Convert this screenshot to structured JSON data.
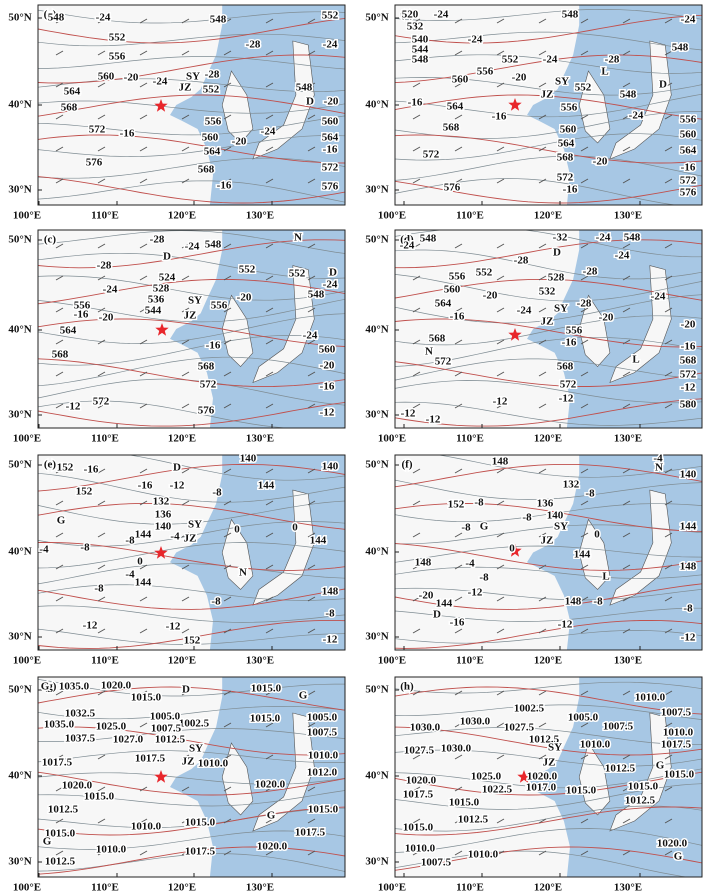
{
  "axes": {
    "lat": [
      "50°N",
      "40°N",
      "30°N"
    ],
    "lon": [
      "100°E",
      "110°E",
      "120°E",
      "130°E"
    ]
  },
  "panels": [
    {
      "label": "(a)",
      "labels": [
        "548",
        "-24",
        "548",
        "552",
        "552",
        "-28",
        "-24",
        "556",
        "560",
        "-20",
        "-24",
        "SY",
        "-28",
        "JZ",
        "552",
        "564",
        "548",
        "D",
        "-20",
        "568",
        "572",
        "-16",
        "556",
        "560",
        "560",
        "564",
        "-24",
        "-20",
        "564",
        "-16",
        "576",
        "568",
        "572",
        "-16",
        "576"
      ]
    },
    {
      "label": "(b)",
      "labels": [
        "520",
        "-24",
        "548",
        "-24",
        "532",
        "540",
        "-24",
        "548",
        "544",
        "548",
        "552",
        "-28",
        "-24",
        "560",
        "556",
        "-20",
        "SY",
        "L",
        "552",
        "548",
        "D",
        "-16",
        "564",
        "JZ",
        "556",
        "-24",
        "556",
        "-16",
        "560",
        "560",
        "568",
        "564",
        "564",
        "572",
        "568",
        "-20",
        "-16",
        "572",
        "572",
        "576",
        "-16",
        "576"
      ]
    },
    {
      "label": "(c)",
      "labels": [
        "-28",
        "-24",
        "548",
        "N",
        "D",
        "-28",
        "552",
        "552",
        "D",
        "-24",
        "524",
        "548",
        "-24",
        "528",
        "536",
        "-20",
        "-16",
        "556",
        "-20",
        "544",
        "SY",
        "556",
        "JZ",
        "564",
        "-24",
        "568",
        "-16",
        "560",
        "568",
        "-20",
        "572",
        "-16",
        "-12",
        "572",
        "576",
        "-12"
      ]
    },
    {
      "label": "(d)",
      "labels": [
        "548",
        "-32",
        "-24",
        "548",
        "-24",
        "D",
        "-24",
        "552",
        "-28",
        "528",
        "-28",
        "556",
        "560",
        "532",
        "-24",
        "-20",
        "SY",
        "-28",
        "564",
        "-16",
        "-24",
        "JZ",
        "-20",
        "-20",
        "568",
        "556",
        "N",
        "-16",
        "-16",
        "572",
        "568",
        "L",
        "568",
        "572",
        "572",
        "-12",
        "-12",
        "-12",
        "580",
        "-12",
        "-12"
      ]
    },
    {
      "label": "(e)",
      "labels": [
        "152",
        "-16",
        "D",
        "140",
        "140",
        "-16",
        "-12",
        "152",
        "144",
        "-8",
        "132",
        "136",
        "G",
        "140",
        "SY",
        "-8",
        "144",
        "-4",
        "JZ",
        "0",
        "0",
        "144",
        "-4",
        "-8",
        "0",
        "N",
        "-4",
        "144",
        "-8",
        "148",
        "-8",
        "-8",
        "-12",
        "-12",
        "152",
        "-12"
      ]
    },
    {
      "label": "(f)",
      "labels": [
        "-4",
        "N",
        "148",
        "132",
        "-8",
        "140",
        "152",
        "-8",
        "136",
        "-8",
        "140",
        "G",
        "SY",
        "144",
        "-8",
        "JZ",
        "0",
        "0",
        "144",
        "148",
        "-4",
        "148",
        "-8",
        "L",
        "-20",
        "144",
        "-12",
        "148",
        "-8",
        "D",
        "-16",
        "-12",
        "-8",
        "-12"
      ]
    },
    {
      "label": "(g)",
      "labels": [
        "G",
        "1035.0",
        "1020.0",
        "1015.0",
        "D",
        "1015.0",
        "G",
        "1032.5",
        "1005.0",
        "1002.5",
        "1015.0",
        "1005.0",
        "1035.0",
        "1025.0",
        "1007.5",
        "1007.5",
        "1037.5",
        "1027.0",
        "1012.5",
        "1010.0",
        "1017.5",
        "1017.5",
        "SY",
        "JZ",
        "1010.0",
        "1012.0",
        "1020.0",
        "1015.0",
        "1020.0",
        "1012.5",
        "1015.0",
        "1015.0",
        "G",
        "1010.0",
        "1015.0",
        "G",
        "1017.5",
        "1010.0",
        "1017.5",
        "1020.0",
        "1012.5"
      ]
    },
    {
      "label": "(h)",
      "labels": [
        "1010.0",
        "1002.5",
        "1007.5",
        "1030.0",
        "1030.0",
        "1005.0",
        "1007.5",
        "1010.0",
        "1027.5",
        "1012.5",
        "1017.5",
        "1027.5",
        "1030.0",
        "SY",
        "1010.0",
        "G",
        "1015.0",
        "JZ",
        "1012.5",
        "1020.0",
        "1025.0",
        "1020.0",
        "1022.5",
        "1017.0",
        "1015.0",
        "1017.5",
        "1015.0",
        "1015.0",
        "1012.5",
        "1012.5",
        "1015.0",
        "1010.0",
        "1010.0",
        "1020.0",
        "1007.5",
        "G"
      ]
    }
  ]
}
